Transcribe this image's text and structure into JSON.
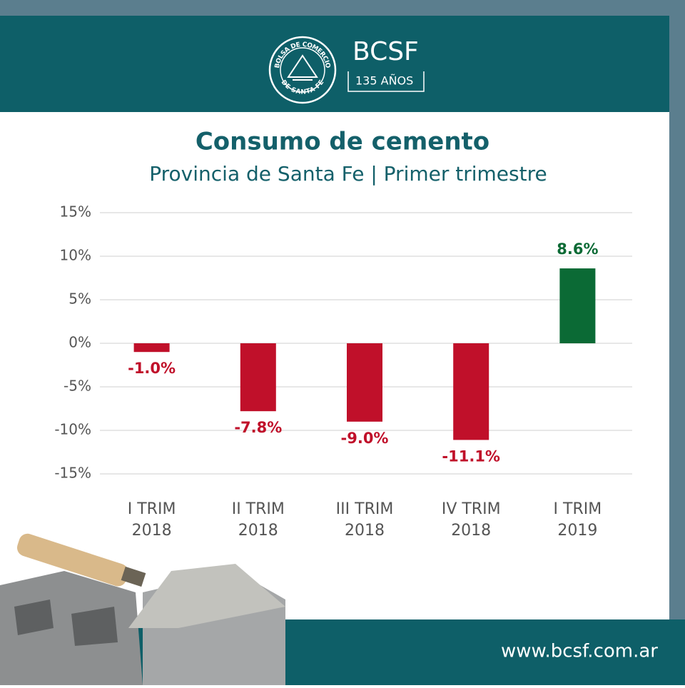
{
  "header": {
    "brand": "BCSF",
    "anniversary": "135 AÑOS",
    "seal_top": "BOLSA DE COMERCIO",
    "seal_bottom": "DE SANTA FE"
  },
  "chart_data": {
    "type": "bar",
    "title": "Consumo de cemento",
    "subtitle": "Provincia de Santa Fe | Primer trimestre",
    "categories": [
      [
        "I TRIM",
        "2018"
      ],
      [
        "II TRIM",
        "2018"
      ],
      [
        "III TRIM",
        "2018"
      ],
      [
        "IV TRIM",
        "2018"
      ],
      [
        "I TRIM",
        "2019"
      ]
    ],
    "values": [
      -1.0,
      -7.8,
      -9.0,
      -11.1,
      8.6
    ],
    "value_labels": [
      "-1.0%",
      "-7.8%",
      "-9.0%",
      "-11.1%",
      "8.6%"
    ],
    "colors": [
      "#c0102a",
      "#c0102a",
      "#c0102a",
      "#c0102a",
      "#0b6a35"
    ],
    "ylim": [
      -15,
      15
    ],
    "yticks": [
      {
        "value": -15,
        "label": "-15%"
      },
      {
        "value": -10,
        "label": "-10%"
      },
      {
        "value": -5,
        "label": "-5%"
      },
      {
        "value": 0,
        "label": "0%"
      },
      {
        "value": 5,
        "label": "5%"
      },
      {
        "value": 10,
        "label": "10%"
      },
      {
        "value": 15,
        "label": "15%"
      }
    ],
    "grid": true
  },
  "footer": {
    "url": "www.bcsf.com.ar"
  }
}
